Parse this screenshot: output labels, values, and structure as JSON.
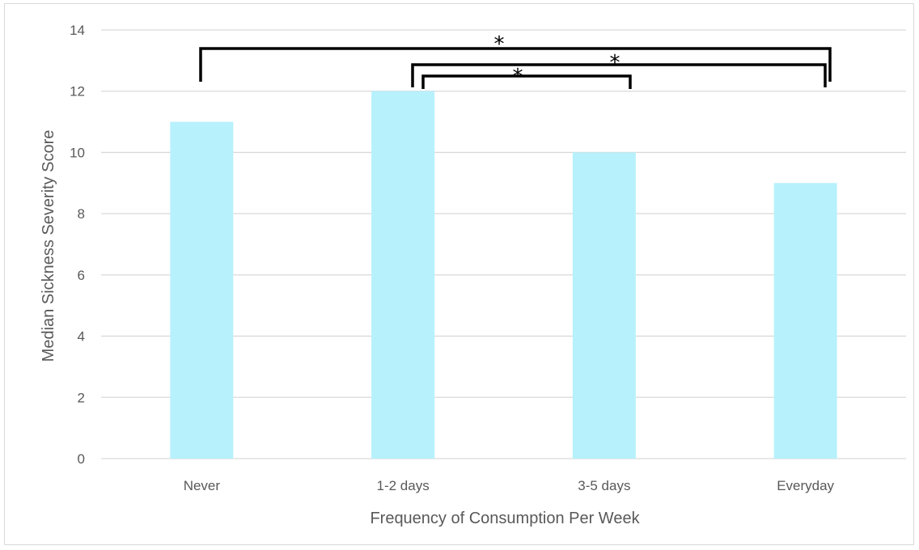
{
  "chart_data": {
    "type": "bar",
    "title": "",
    "xlabel": "Frequency of Consumption Per Week",
    "ylabel": "Median Sickness Severity Score",
    "categories": [
      "Never",
      "1-2 days",
      "3-5 days",
      "Everyday"
    ],
    "values": [
      11,
      12,
      10,
      9
    ],
    "ylim": [
      0,
      14
    ],
    "yticks": [
      0,
      2,
      4,
      6,
      8,
      10,
      12,
      14
    ],
    "grid": true,
    "legend": "none",
    "bar_color": "#b7f1fc",
    "grid_color": "#d9d9d9",
    "significance": [
      {
        "from": "Never",
        "to": "Everyday",
        "label": "*"
      },
      {
        "from": "1-2 days",
        "to": "Everyday",
        "label": "*"
      },
      {
        "from": "1-2 days",
        "to": "3-5 days",
        "label": "*"
      }
    ]
  }
}
